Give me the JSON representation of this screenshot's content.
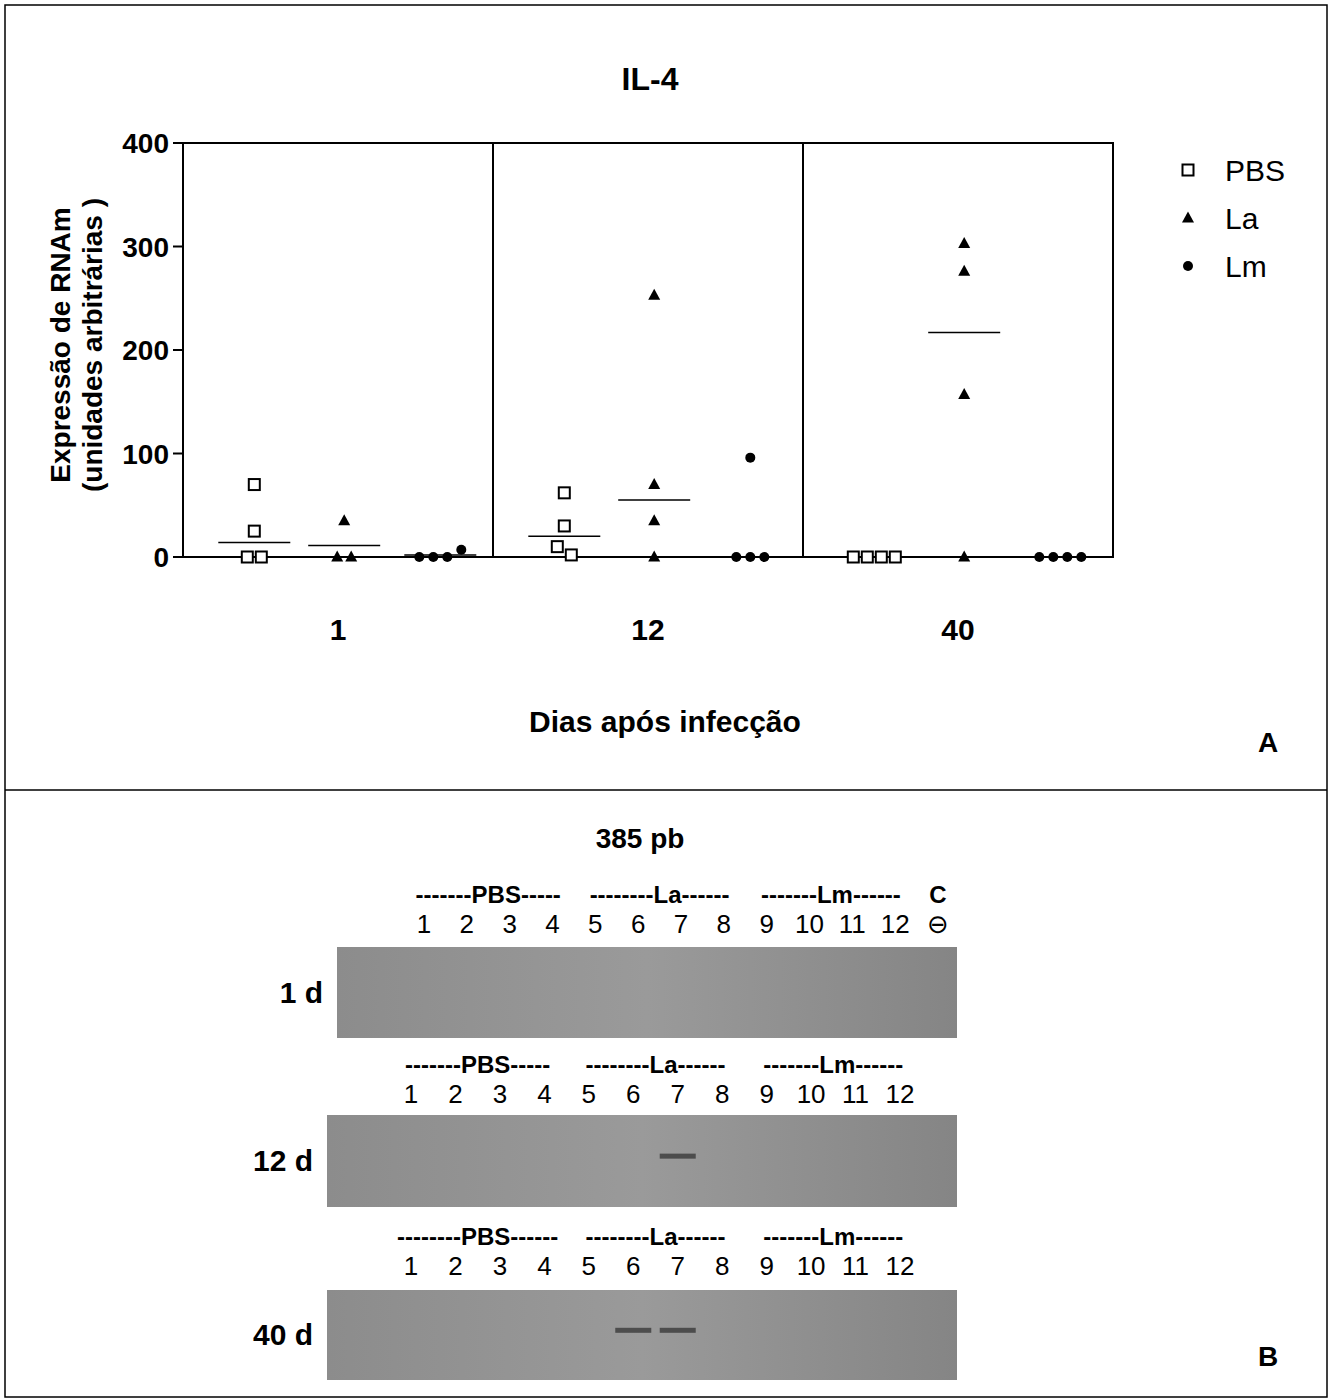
{
  "chart_data": {
    "type": "scatter",
    "title": "IL-4",
    "y_label": [
      "Expressão de RNAm",
      "(unidades arbitrárias )"
    ],
    "x_label": "Dias após infecção",
    "categories": [
      "1",
      "12",
      "40"
    ],
    "ylim": [
      0,
      400
    ],
    "yticks": [
      0,
      100,
      200,
      300,
      400
    ],
    "legend": "upper right",
    "annotations": [
      "A"
    ],
    "series": [
      {
        "name": "PBS",
        "color": "#000000",
        "marker": "square-open",
        "values": [
          [
            70,
            25,
            0,
            0
          ],
          [
            62,
            30,
            10,
            2
          ],
          [
            0,
            0,
            0,
            0
          ]
        ],
        "means": [
          14,
          20,
          null
        ]
      },
      {
        "name": "La",
        "color": "#000000",
        "marker": "triangle",
        "values": [
          [
            35,
            0,
            0
          ],
          [
            253,
            70,
            35,
            0
          ],
          [
            303,
            276,
            157,
            0
          ]
        ],
        "means": [
          11,
          55,
          217
        ]
      },
      {
        "name": "Lm",
        "color": "#000000",
        "marker": "circle",
        "values": [
          [
            0,
            0,
            0,
            7
          ],
          [
            96,
            0,
            0,
            0
          ],
          [
            0,
            0,
            0,
            0
          ]
        ],
        "means": [
          2,
          null,
          null
        ]
      }
    ]
  },
  "gel": {
    "title": "385 pb",
    "panel_label": "B",
    "rows": [
      {
        "label": "1 d",
        "groups": [
          "-------PBS-----",
          "--------La------",
          "-------Lm------",
          "C"
        ],
        "lanes": [
          "1",
          "2",
          "3",
          "4",
          "5",
          "6",
          "7",
          "8",
          "9",
          "10",
          "11",
          "12",
          "⊖"
        ],
        "bands": []
      },
      {
        "label": "12 d",
        "groups": [
          "-------PBS-----",
          "--------La------",
          "-------Lm------"
        ],
        "lanes": [
          "1",
          "2",
          "3",
          "4",
          "5",
          "6",
          "7",
          "8",
          "9",
          "10",
          "11",
          "12"
        ],
        "bands": [
          7
        ]
      },
      {
        "label": "40 d",
        "groups": [
          "--------PBS------",
          "--------La------",
          "-------Lm------"
        ],
        "lanes": [
          "1",
          "2",
          "3",
          "4",
          "5",
          "6",
          "7",
          "8",
          "9",
          "10",
          "11",
          "12"
        ],
        "bands": [
          6,
          7
        ]
      }
    ]
  }
}
